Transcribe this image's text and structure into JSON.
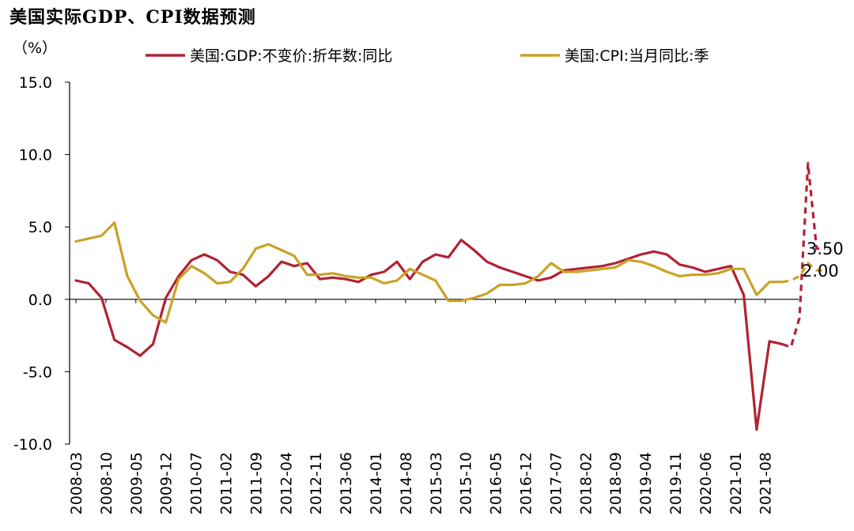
{
  "title": "美国实际GDP、CPI数据预测",
  "chart_data": {
    "type": "line",
    "title": "美国实际GDP、CPI数据预测",
    "ylabel": "（%）",
    "ylim": [
      -10,
      15
    ],
    "yticks": [
      15.0,
      10.0,
      5.0,
      0.0,
      -5.0,
      -10.0
    ],
    "ytick_labels": [
      "15.0",
      "10.0",
      "5.0",
      "0.0",
      "-5.0",
      "-10.0"
    ],
    "x_tick_labels": [
      "2008-03",
      "2008-10",
      "2009-05",
      "2009-12",
      "2010-07",
      "2011-02",
      "2011-09",
      "2012-04",
      "2012-11",
      "2013-06",
      "2014-01",
      "2014-08",
      "2015-03",
      "2015-10",
      "2016-05",
      "2016-12",
      "2017-07",
      "2018-02",
      "2018-09",
      "2019-04",
      "2019-11",
      "2020-06",
      "2021-01",
      "2021-08"
    ],
    "x_range": [
      "2008-03",
      "2021-12"
    ],
    "grid": false,
    "legend_position": "top",
    "series": [
      {
        "name": "美国:GDP:不变价:折年数:同比",
        "color": "#b22234",
        "actual": [
          [
            "2008-03",
            1.3
          ],
          [
            "2008-06",
            1.1
          ],
          [
            "2008-09",
            0.1
          ],
          [
            "2008-12",
            -2.8
          ],
          [
            "2009-03",
            -3.3
          ],
          [
            "2009-06",
            -3.9
          ],
          [
            "2009-09",
            -3.1
          ],
          [
            "2009-12",
            0.1
          ],
          [
            "2010-03",
            1.6
          ],
          [
            "2010-06",
            2.7
          ],
          [
            "2010-09",
            3.1
          ],
          [
            "2010-12",
            2.7
          ],
          [
            "2011-03",
            1.9
          ],
          [
            "2011-06",
            1.7
          ],
          [
            "2011-09",
            0.9
          ],
          [
            "2011-12",
            1.6
          ],
          [
            "2012-03",
            2.6
          ],
          [
            "2012-06",
            2.3
          ],
          [
            "2012-09",
            2.5
          ],
          [
            "2012-12",
            1.4
          ],
          [
            "2013-03",
            1.5
          ],
          [
            "2013-06",
            1.4
          ],
          [
            "2013-09",
            1.2
          ],
          [
            "2013-12",
            1.7
          ],
          [
            "2014-03",
            1.9
          ],
          [
            "2014-06",
            2.6
          ],
          [
            "2014-09",
            1.4
          ],
          [
            "2014-12",
            2.6
          ],
          [
            "2015-03",
            3.1
          ],
          [
            "2015-06",
            2.9
          ],
          [
            "2015-09",
            4.1
          ],
          [
            "2015-12",
            3.4
          ],
          [
            "2016-03",
            2.6
          ],
          [
            "2016-06",
            2.2
          ],
          [
            "2016-09",
            1.9
          ],
          [
            "2016-12",
            1.6
          ],
          [
            "2017-03",
            1.3
          ],
          [
            "2017-06",
            1.5
          ],
          [
            "2017-09",
            2.0
          ],
          [
            "2017-12",
            2.1
          ],
          [
            "2018-03",
            2.2
          ],
          [
            "2018-06",
            2.3
          ],
          [
            "2018-09",
            2.5
          ],
          [
            "2018-12",
            2.8
          ],
          [
            "2019-03",
            3.1
          ],
          [
            "2019-06",
            3.3
          ],
          [
            "2019-09",
            3.1
          ],
          [
            "2019-12",
            2.4
          ],
          [
            "2020-03",
            2.2
          ],
          [
            "2020-06",
            1.9
          ],
          [
            "2020-09",
            2.1
          ],
          [
            "2020-12",
            2.3
          ],
          [
            "2021-03",
            0.3
          ],
          [
            "2021-06",
            -9.0
          ],
          [
            "2021-09",
            -2.9
          ],
          [
            "2021-12",
            -3.1
          ]
        ],
        "forecast": [
          [
            "2021-12",
            -3.1
          ],
          [
            "2022-02",
            -3.3
          ],
          [
            "2022-04",
            -1.3
          ],
          [
            "2022-06",
            9.4
          ],
          [
            "2022-08",
            3.5
          ],
          [
            "2022-10",
            3.5
          ]
        ],
        "end_label": "3.50"
      },
      {
        "name": "美国:CPI:当月同比:季",
        "color": "#c9a227",
        "actual": [
          [
            "2008-03",
            4.0
          ],
          [
            "2008-06",
            4.2
          ],
          [
            "2008-09",
            4.4
          ],
          [
            "2008-12",
            5.3
          ],
          [
            "2009-03",
            1.6
          ],
          [
            "2009-06",
            -0.1
          ],
          [
            "2009-09",
            -1.1
          ],
          [
            "2009-12",
            -1.6
          ],
          [
            "2010-03",
            1.4
          ],
          [
            "2010-06",
            2.3
          ],
          [
            "2010-09",
            1.8
          ],
          [
            "2010-12",
            1.1
          ],
          [
            "2011-03",
            1.2
          ],
          [
            "2011-06",
            2.1
          ],
          [
            "2011-09",
            3.5
          ],
          [
            "2011-12",
            3.8
          ],
          [
            "2012-03",
            3.4
          ],
          [
            "2012-06",
            3.0
          ],
          [
            "2012-09",
            1.7
          ],
          [
            "2012-12",
            1.7
          ],
          [
            "2013-03",
            1.8
          ],
          [
            "2013-06",
            1.6
          ],
          [
            "2013-09",
            1.5
          ],
          [
            "2013-12",
            1.5
          ],
          [
            "2014-03",
            1.1
          ],
          [
            "2014-06",
            1.3
          ],
          [
            "2014-09",
            2.1
          ],
          [
            "2014-12",
            1.7
          ],
          [
            "2015-03",
            1.3
          ],
          [
            "2015-06",
            -0.1
          ],
          [
            "2015-09",
            -0.1
          ],
          [
            "2015-12",
            0.1
          ],
          [
            "2016-03",
            0.4
          ],
          [
            "2016-06",
            1.0
          ],
          [
            "2016-09",
            1.0
          ],
          [
            "2016-12",
            1.1
          ],
          [
            "2017-03",
            1.6
          ],
          [
            "2017-06",
            2.5
          ],
          [
            "2017-09",
            1.9
          ],
          [
            "2017-12",
            1.9
          ],
          [
            "2018-03",
            2.0
          ],
          [
            "2018-06",
            2.1
          ],
          [
            "2018-09",
            2.2
          ],
          [
            "2018-12",
            2.7
          ],
          [
            "2019-03",
            2.6
          ],
          [
            "2019-06",
            2.3
          ],
          [
            "2019-09",
            1.9
          ],
          [
            "2019-12",
            1.6
          ],
          [
            "2020-03",
            1.7
          ],
          [
            "2020-06",
            1.7
          ],
          [
            "2020-09",
            1.8
          ],
          [
            "2020-12",
            2.1
          ],
          [
            "2021-03",
            2.1
          ],
          [
            "2021-06",
            0.3
          ],
          [
            "2021-09",
            1.2
          ],
          [
            "2021-12",
            1.2
          ]
        ],
        "forecast": [
          [
            "2021-12",
            1.2
          ],
          [
            "2022-02",
            1.3
          ],
          [
            "2022-04",
            1.6
          ],
          [
            "2022-06",
            2.5
          ],
          [
            "2022-08",
            2.0
          ],
          [
            "2022-10",
            2.0
          ]
        ],
        "end_label": "2.00"
      }
    ]
  }
}
